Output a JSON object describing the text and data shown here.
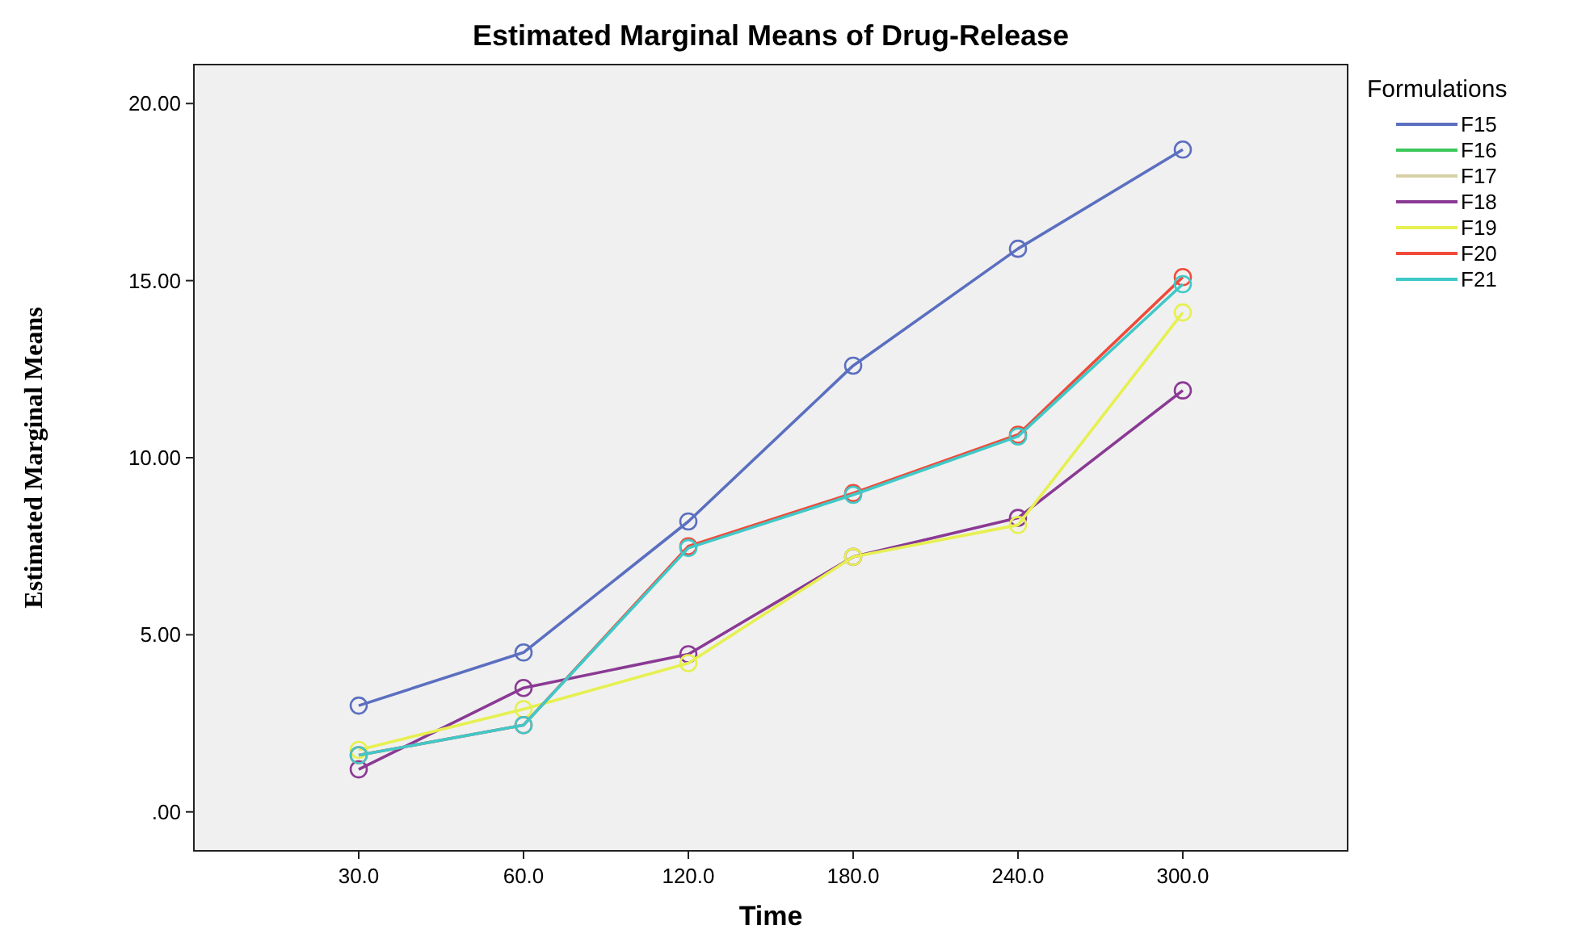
{
  "chart_data": {
    "type": "line",
    "title": "Estimated Marginal Means of Drug-Release",
    "xlabel": "Time",
    "ylabel": "Estimated Marginal Means",
    "legend_title": "Formulations",
    "legend": "right",
    "marker": "circle",
    "categories": [
      "30.0",
      "60.0",
      "120.0",
      "180.0",
      "240.0",
      "300.0"
    ],
    "ylim": [
      -1.1,
      21.1
    ],
    "yticks": [
      {
        "value": 0,
        "label": ".00"
      },
      {
        "value": 5,
        "label": "5.00"
      },
      {
        "value": 10,
        "label": "10.00"
      },
      {
        "value": 15,
        "label": "15.00"
      },
      {
        "value": 20,
        "label": "20.00"
      }
    ],
    "series": [
      {
        "name": "F15",
        "color": "#5b6fc0",
        "values": [
          3.0,
          4.5,
          8.2,
          12.6,
          15.9,
          18.7
        ]
      },
      {
        "name": "F16",
        "color": "#3cc85a",
        "values": [
          null,
          null,
          null,
          null,
          null,
          null
        ]
      },
      {
        "name": "F17",
        "color": "#d8cfa8",
        "values": [
          null,
          null,
          null,
          null,
          null,
          null
        ]
      },
      {
        "name": "F18",
        "color": "#8a3a94",
        "values": [
          1.2,
          3.5,
          4.45,
          7.2,
          8.3,
          11.9
        ]
      },
      {
        "name": "F19",
        "color": "#e6f050",
        "values": [
          1.75,
          2.9,
          4.2,
          7.2,
          8.1,
          14.1
        ]
      },
      {
        "name": "F20",
        "color": "#f04a3a",
        "values": [
          1.6,
          2.45,
          7.5,
          9.0,
          10.65,
          15.1
        ]
      },
      {
        "name": "F21",
        "color": "#40c8c8",
        "values": [
          1.6,
          2.45,
          7.45,
          8.95,
          10.6,
          14.9
        ]
      }
    ]
  }
}
